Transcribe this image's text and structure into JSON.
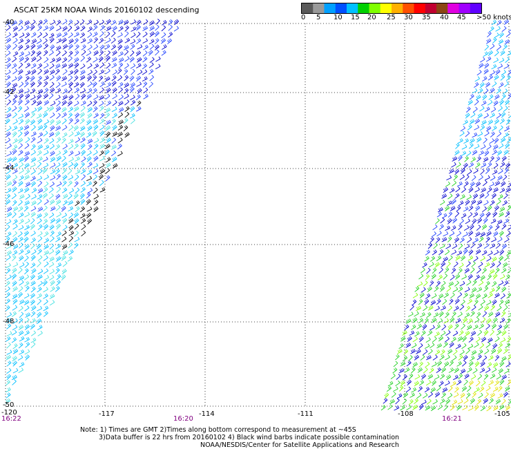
{
  "title": "ASCAT 25KM NOAA Winds 20160102 descending",
  "colorbar": {
    "colors": [
      "#5a5a5a",
      "#9a9a9a",
      "#00a0ff",
      "#0050ff",
      "#00c0ff",
      "#00d000",
      "#80ff00",
      "#ffff00",
      "#ffb000",
      "#ff5000",
      "#ff0000",
      "#c00030",
      "#8b4513",
      "#e000e0",
      "#a000ff",
      "#6000ff"
    ],
    "labels": [
      "0",
      "5",
      "10",
      "15",
      "20",
      "25",
      "30",
      "35",
      "40",
      "45",
      ">50 knots"
    ]
  },
  "lat_labels": [
    "-40",
    "-42",
    "-44",
    "-46",
    "-48",
    "-50"
  ],
  "lon_labels": [
    "-120",
    "-117",
    "-114",
    "-111",
    "-108",
    "-105"
  ],
  "time_labels": [
    "16:22",
    "16:20",
    "16:21"
  ],
  "notes": [
    "Note: 1) Times are GMT 2)Times along bottom correspond to measurement at ~45S",
    "3)Data buffer is 22 hrs from 20160102 4) Black wind barbs indicate possible contamination",
    "NOAA/NESDIS/Center for Satellite Applications and Research"
  ],
  "swaths": [
    {
      "name": "west-swath",
      "colors": [
        "#0000cd",
        "#1e40ff",
        "#00bfff",
        "#40e0e0",
        "#000000"
      ]
    },
    {
      "name": "east-swath",
      "colors": [
        "#0000cd",
        "#1e40ff",
        "#00bfff",
        "#20d020",
        "#80ff00",
        "#e0e000"
      ]
    }
  ]
}
